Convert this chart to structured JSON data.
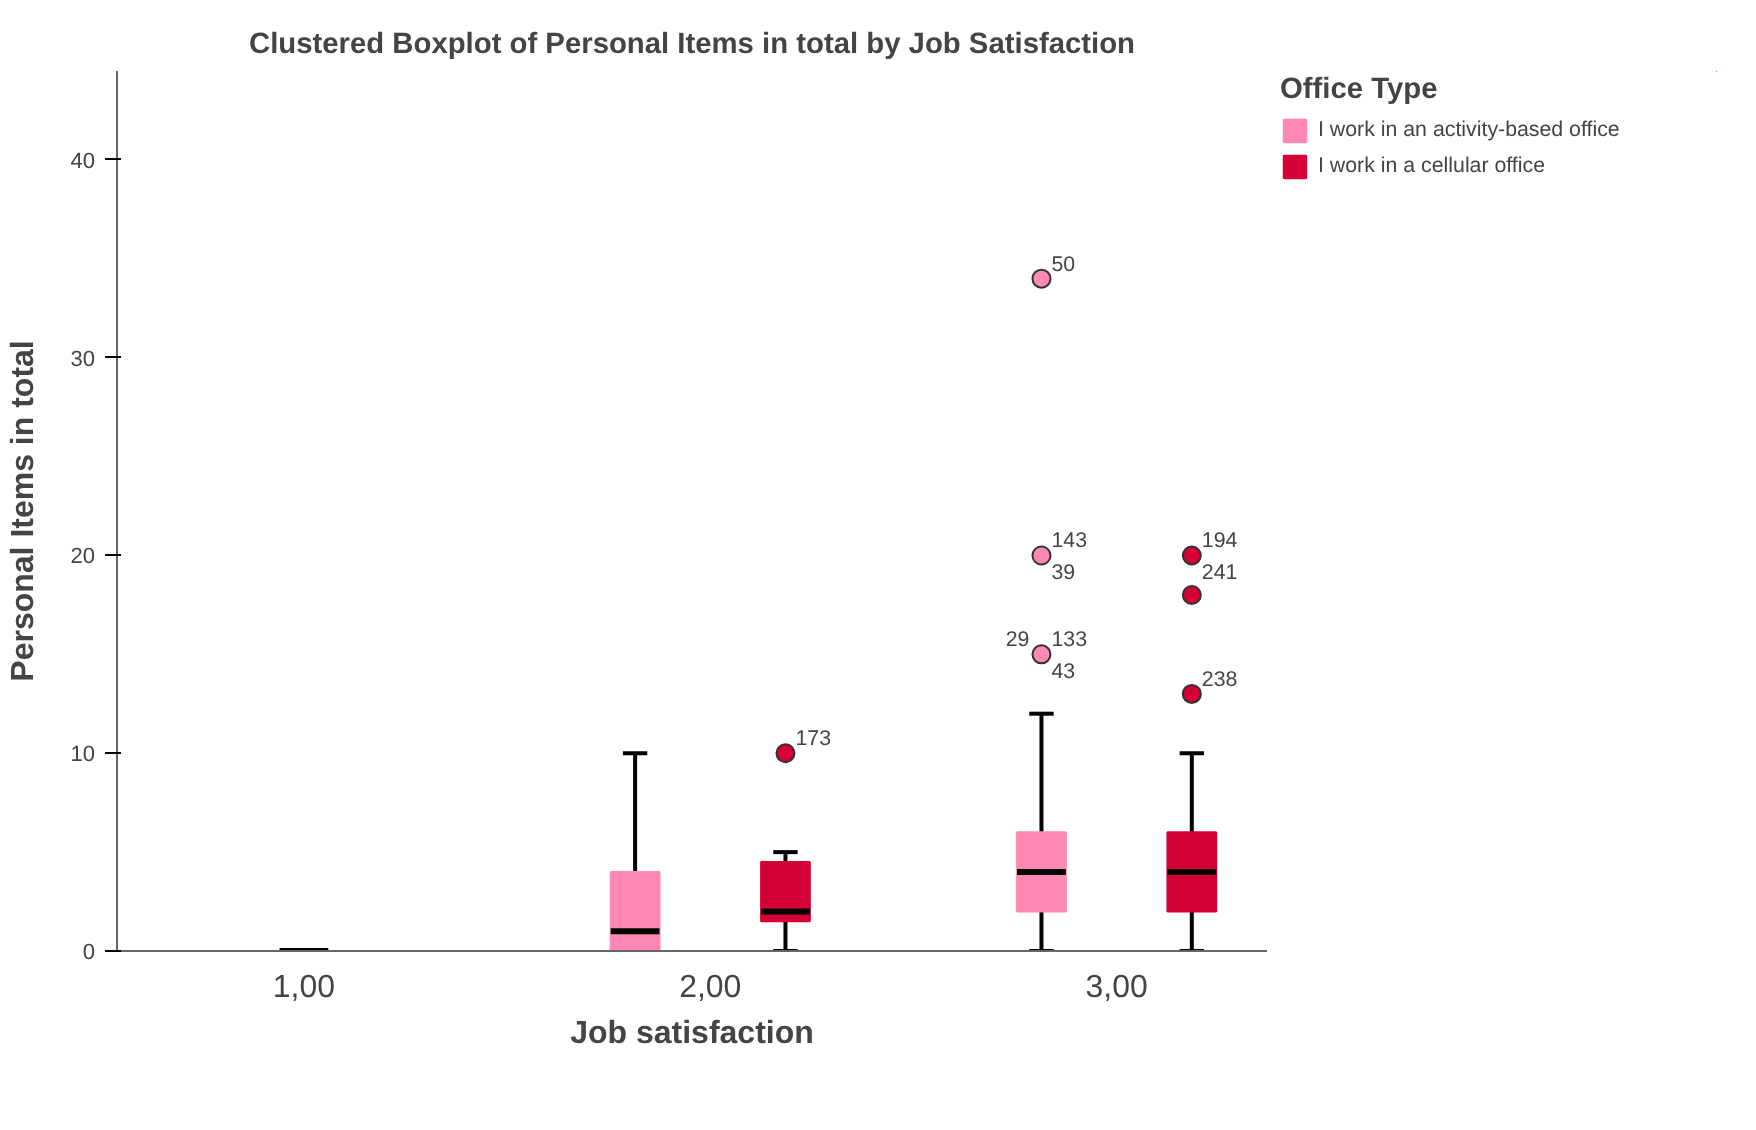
{
  "chart_data": {
    "type": "box",
    "title": "Clustered Boxplot of Personal Items in total by Job Satisfaction",
    "xlabel": "Job satisfaction",
    "ylabel": "Personal Items in total",
    "legend_title": "Office Type",
    "legend": "right",
    "grid": false,
    "categories": [
      "1,00",
      "2,00",
      "3,00"
    ],
    "ylim": [
      0,
      44.5
    ],
    "yticks": [
      0,
      10,
      20,
      30,
      40
    ],
    "series": [
      {
        "name": "I work in an activity-based office",
        "color": "#ff88b4",
        "boxes": [
          {
            "low": 0,
            "q1": 0,
            "median": 0,
            "q3": 0,
            "high": 0
          },
          {
            "low": 0,
            "q1": 0,
            "median": 1,
            "q3": 4,
            "high": 10
          },
          {
            "low": 0,
            "q1": 2,
            "median": 4,
            "q3": 6,
            "high": 12,
            "outliers": [
              15,
              20,
              34
            ]
          }
        ]
      },
      {
        "name": "I work in a cellular office",
        "color": "#d50036",
        "boxes": [
          null,
          {
            "low": 0,
            "q1": 1.5,
            "median": 2,
            "q3": 4.5,
            "high": 5,
            "outliers": [
              10
            ]
          },
          {
            "low": 0,
            "q1": 2,
            "median": 4,
            "q3": 6,
            "high": 10,
            "outliers": [
              13,
              18,
              20
            ]
          }
        ]
      }
    ],
    "annotations": [
      "50",
      "143",
      "39",
      "133",
      "43",
      "29",
      "173",
      "194",
      "241",
      "238"
    ]
  }
}
